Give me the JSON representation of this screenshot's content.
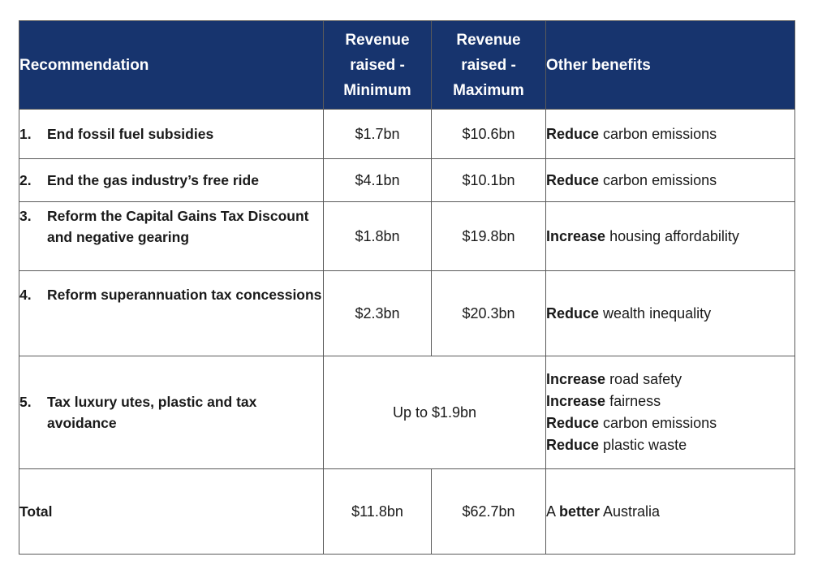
{
  "headers": {
    "recommendation": "Recommendation",
    "min": [
      "Revenue",
      "raised -",
      "Minimum"
    ],
    "max": [
      "Revenue",
      "raised -",
      "Maximum"
    ],
    "benefits": "Other benefits"
  },
  "rows": [
    {
      "num": "1.",
      "text": "End fossil fuel subsidies",
      "min": "$1.7bn",
      "max": "$10.6bn",
      "benefits": [
        {
          "verb": "Reduce",
          "rest": " carbon emissions"
        }
      ]
    },
    {
      "num": "2.",
      "text": "End the gas industry’s free ride",
      "min": "$4.1bn",
      "max": "$10.1bn",
      "benefits": [
        {
          "verb": "Reduce",
          "rest": " carbon emissions"
        }
      ]
    },
    {
      "num": "3.",
      "text": "Reform the Capital Gains Tax Discount and negative gearing",
      "min": "$1.8bn",
      "max": "$19.8bn",
      "benefits": [
        {
          "verb": "Increase",
          "rest": " housing affordability"
        }
      ]
    },
    {
      "num": "4.",
      "text": "Reform superannuation tax concessions",
      "min": "$2.3bn",
      "max": "$20.3bn",
      "benefits": [
        {
          "verb": "Reduce",
          "rest": " wealth inequality"
        }
      ]
    },
    {
      "num": "5.",
      "text": "Tax luxury utes, plastic and tax avoidance",
      "range": "Up to $1.9bn",
      "benefits": [
        {
          "verb": "Increase",
          "rest": " road safety"
        },
        {
          "verb": "Increase",
          "rest": " fairness"
        },
        {
          "verb": "Reduce",
          "rest": " carbon emissions"
        },
        {
          "verb": "Reduce",
          "rest": " plastic waste"
        }
      ]
    }
  ],
  "total": {
    "label": "Total",
    "min": "$11.8bn",
    "max": "$62.7bn",
    "benefit_pre": "A ",
    "benefit_bold": "better",
    "benefit_post": " Australia"
  }
}
